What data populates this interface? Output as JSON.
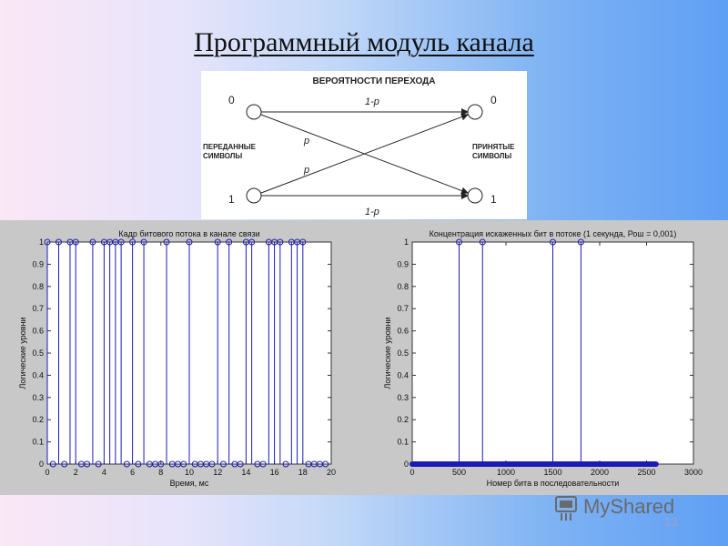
{
  "title": "Программный модуль канала",
  "diagram": {
    "heading": "ВЕРОЯТНОСТИ ПЕРЕХОДА",
    "left_top": "0",
    "left_bottom": "1",
    "right_top": "0",
    "right_bottom": "1",
    "top_label": "1-p",
    "bottom_label": "1-p",
    "cross_label_1": "p",
    "cross_label_2": "p",
    "sent_line1": "ПЕРЕДАННЫЕ",
    "sent_line2": "СИМВОЛЫ",
    "recv_line1": "ПРИНЯТЫЕ",
    "recv_line2": "СИМВОЛЫ"
  },
  "chart_data": [
    {
      "type": "stem",
      "title": "Кадр битового потока в канале связи",
      "xlabel": "Время, мс",
      "ylabel": "Логические уровни",
      "xlim": [
        0,
        20
      ],
      "ylim": [
        0,
        1
      ],
      "xticks": [
        "0",
        "2",
        "4",
        "6",
        "8",
        "10",
        "12",
        "14",
        "16",
        "18",
        "20"
      ],
      "yticks": [
        "0",
        "0.1",
        "0.2",
        "0.3",
        "0.4",
        "0.5",
        "0.6",
        "0.7",
        "0.8",
        "0.9",
        "1"
      ],
      "x": [
        0,
        0.4,
        0.8,
        1.2,
        1.6,
        2.0,
        2.4,
        2.8,
        3.2,
        3.6,
        4.0,
        4.4,
        4.8,
        5.2,
        5.6,
        6.0,
        6.4,
        6.8,
        7.2,
        7.6,
        8.0,
        8.4,
        8.8,
        9.2,
        9.6,
        10.0,
        10.4,
        10.8,
        11.2,
        11.6,
        12.0,
        12.4,
        12.8,
        13.2,
        13.6,
        14.0,
        14.4,
        14.8,
        15.2,
        15.6,
        16.0,
        16.4,
        16.8,
        17.2,
        17.6,
        18.0,
        18.4,
        18.8,
        19.2,
        19.6
      ],
      "values": [
        1,
        0,
        1,
        0,
        1,
        1,
        0,
        0,
        1,
        0,
        1,
        1,
        1,
        1,
        0,
        1,
        0,
        1,
        0,
        0,
        0,
        1,
        0,
        0,
        0,
        1,
        0,
        0,
        0,
        0,
        1,
        0,
        1,
        0,
        0,
        1,
        1,
        0,
        0,
        1,
        1,
        1,
        0,
        1,
        1,
        1,
        0,
        0,
        0,
        0
      ]
    },
    {
      "type": "stem",
      "title": "Концентрация искаженных бит в потоке (1 секунда, Рош = 0,001)",
      "xlabel": "Номер бита в последовательности",
      "ylabel": "Логические уровни",
      "xlim": [
        0,
        3000
      ],
      "ylim": [
        0,
        1
      ],
      "xticks": [
        "0",
        "500",
        "1000",
        "1500",
        "2000",
        "2500",
        "3000"
      ],
      "yticks": [
        "0",
        "0.1",
        "0.2",
        "0.3",
        "0.4",
        "0.5",
        "0.6",
        "0.7",
        "0.8",
        "0.9",
        "1"
      ],
      "zero_range": [
        0,
        2600
      ],
      "error_bits": [
        500,
        750,
        1500,
        1800
      ]
    }
  ],
  "logo_text": "MyShared",
  "page_number": "13"
}
